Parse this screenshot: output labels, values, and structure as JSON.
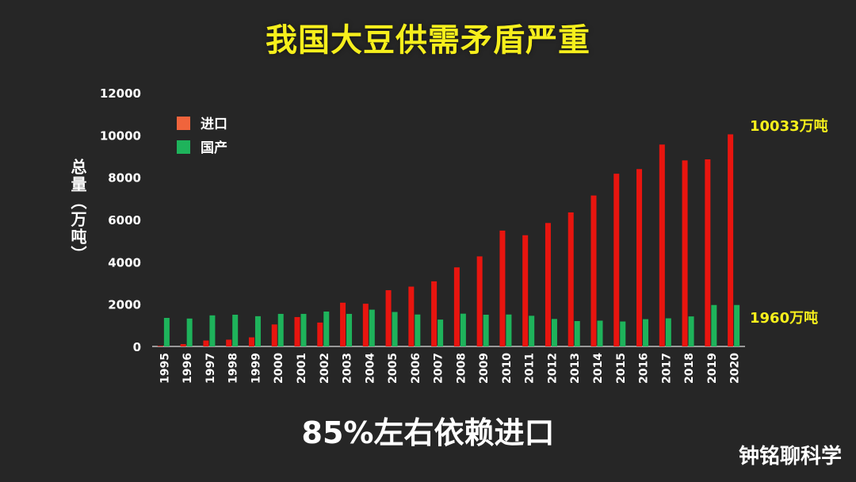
{
  "title": "我国大豆供需矛盾严重",
  "subtitle": "85%左右依赖进口",
  "watermark": "钟铭聊科学",
  "chart_data": {
    "type": "bar",
    "categories": [
      "1995",
      "1996",
      "1997",
      "1998",
      "1999",
      "2000",
      "2001",
      "2002",
      "2003",
      "2004",
      "2005",
      "2006",
      "2007",
      "2008",
      "2009",
      "2010",
      "2011",
      "2012",
      "2013",
      "2014",
      "2015",
      "2016",
      "2017",
      "2018",
      "2019",
      "2020"
    ],
    "series": [
      {
        "name": "进口",
        "color": "#e8150f",
        "values": [
          30,
          110,
          280,
          320,
          430,
          1040,
          1390,
          1130,
          2070,
          2020,
          2660,
          2830,
          3080,
          3740,
          4260,
          5480,
          5260,
          5840,
          6340,
          7140,
          8170,
          8390,
          9550,
          8800,
          8850,
          10033
        ]
      },
      {
        "name": "国产",
        "color": "#1eb35b",
        "values": [
          1350,
          1320,
          1470,
          1500,
          1430,
          1540,
          1540,
          1650,
          1540,
          1740,
          1630,
          1510,
          1270,
          1550,
          1500,
          1510,
          1450,
          1300,
          1200,
          1220,
          1180,
          1290,
          1330,
          1420,
          1960,
          1960
        ]
      }
    ],
    "ylabel": "总量（万吨）",
    "ylim": [
      0,
      12000
    ],
    "yticks": [
      0,
      2000,
      4000,
      6000,
      8000,
      10000,
      12000
    ],
    "legend_position": "top-left",
    "grid": false,
    "annotations": [
      {
        "text": "10033万吨",
        "series": "进口",
        "category": "2020"
      },
      {
        "text": "1960万吨",
        "series": "国产",
        "category": "2020"
      }
    ]
  }
}
